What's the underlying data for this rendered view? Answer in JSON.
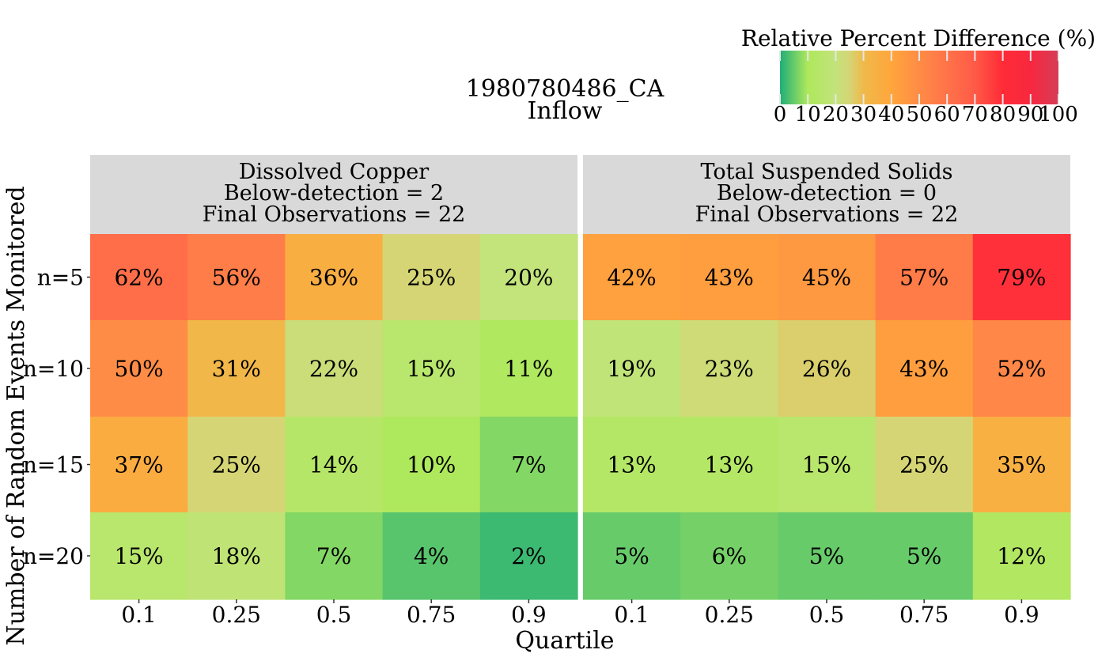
{
  "chart_data": {
    "type": "heatmap",
    "title": "1980780486_CA",
    "subtitle": "Inflow",
    "xlabel": "Quartile",
    "ylabel": "Number of Random Events Monitored",
    "x_categories": [
      "0.1",
      "0.25",
      "0.5",
      "0.75",
      "0.9"
    ],
    "y_categories": [
      "n=5",
      "n=10",
      "n=15",
      "n=20"
    ],
    "panels": [
      {
        "header": [
          "Dissolved Copper",
          "Below-detection = 2",
          "Final Observations = 22"
        ],
        "values": [
          [
            62,
            56,
            36,
            25,
            20
          ],
          [
            50,
            31,
            22,
            15,
            11
          ],
          [
            37,
            25,
            14,
            10,
            7
          ],
          [
            15,
            18,
            7,
            4,
            2
          ]
        ],
        "labels": [
          [
            "62%",
            "56%",
            "36%",
            "25%",
            "20%"
          ],
          [
            "50%",
            "31%",
            "22%",
            "15%",
            "11%"
          ],
          [
            "37%",
            "25%",
            "14%",
            "10%",
            "7%"
          ],
          [
            "15%",
            "18%",
            "7%",
            "4%",
            "2%"
          ]
        ]
      },
      {
        "header": [
          "Total Suspended Solids",
          "Below-detection = 0",
          "Final Observations = 22"
        ],
        "values": [
          [
            42,
            43,
            45,
            57,
            79
          ],
          [
            19,
            23,
            26,
            43,
            52
          ],
          [
            13,
            13,
            15,
            25,
            35
          ],
          [
            5,
            6,
            5,
            5,
            12
          ]
        ],
        "labels": [
          [
            "42%",
            "43%",
            "45%",
            "57%",
            "79%"
          ],
          [
            "19%",
            "23%",
            "26%",
            "43%",
            "52%"
          ],
          [
            "13%",
            "13%",
            "15%",
            "25%",
            "35%"
          ],
          [
            "5%",
            "6%",
            "5%",
            "5%",
            "12%"
          ]
        ]
      }
    ],
    "legend": {
      "title": "Relative Percent Difference (%)",
      "position": "top-right",
      "ticks": [
        "0",
        "10",
        "20",
        "30",
        "40",
        "50",
        "60",
        "70",
        "80",
        "90",
        "100"
      ],
      "range": [
        0,
        100
      ],
      "color_stops": [
        {
          "value": 0,
          "color": "#1fae78"
        },
        {
          "value": 10,
          "color": "#aee85c"
        },
        {
          "value": 20,
          "color": "#c3e37b"
        },
        {
          "value": 25,
          "color": "#d5d575"
        },
        {
          "value": 30,
          "color": "#f0b94a"
        },
        {
          "value": 40,
          "color": "#ffa63c"
        },
        {
          "value": 50,
          "color": "#ff8c46"
        },
        {
          "value": 60,
          "color": "#ff7349"
        },
        {
          "value": 70,
          "color": "#ff5a47"
        },
        {
          "value": 80,
          "color": "#ff2b37"
        },
        {
          "value": 90,
          "color": "#f7283f"
        },
        {
          "value": 100,
          "color": "#d63d57"
        }
      ]
    },
    "colors": {
      "strip_background": "#d9d9d9",
      "text": "#000000"
    }
  }
}
